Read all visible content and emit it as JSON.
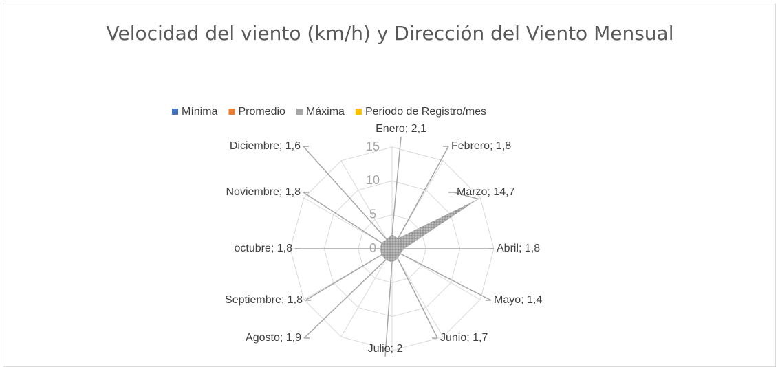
{
  "chart_data": {
    "type": "radar",
    "title": "Velocidad del viento (km/h) y Dirección del Viento Mensual",
    "categories": [
      "Enero",
      "Febrero",
      "Marzo",
      "Abril",
      "Mayo",
      "Junio",
      "Julio",
      "Agosto",
      "Septiembre",
      "octubre",
      "Noviembre",
      "Diciembre"
    ],
    "series": [
      {
        "name": "Mínima",
        "color": "#4472c4"
      },
      {
        "name": "Promedio",
        "color": "#ed7d31"
      },
      {
        "name": "Máxima",
        "color": "#a5a5a5",
        "values": [
          2.1,
          1.8,
          14.7,
          1.8,
          1.4,
          1.7,
          2,
          1.9,
          1.8,
          1.8,
          1.8,
          1.6
        ],
        "value_labels": [
          "Enero; 2,1",
          "Febrero; 1,8",
          "Marzo; 14,7",
          "Abril; 1,8",
          "Mayo; 1,4",
          "Junio; 1,7",
          "Julio; 2",
          "Agosto; 1,9",
          "Septiembre; 1,8",
          "octubre; 1,8",
          "Noviembre; 1,8",
          "Diciembre; 1,6"
        ]
      },
      {
        "name": "Periodo de Registro/mes",
        "color": "#ffc000"
      }
    ],
    "ylim": [
      0,
      15
    ],
    "yticks": [
      0,
      5,
      10,
      15
    ],
    "grid": true,
    "legend": "top"
  }
}
